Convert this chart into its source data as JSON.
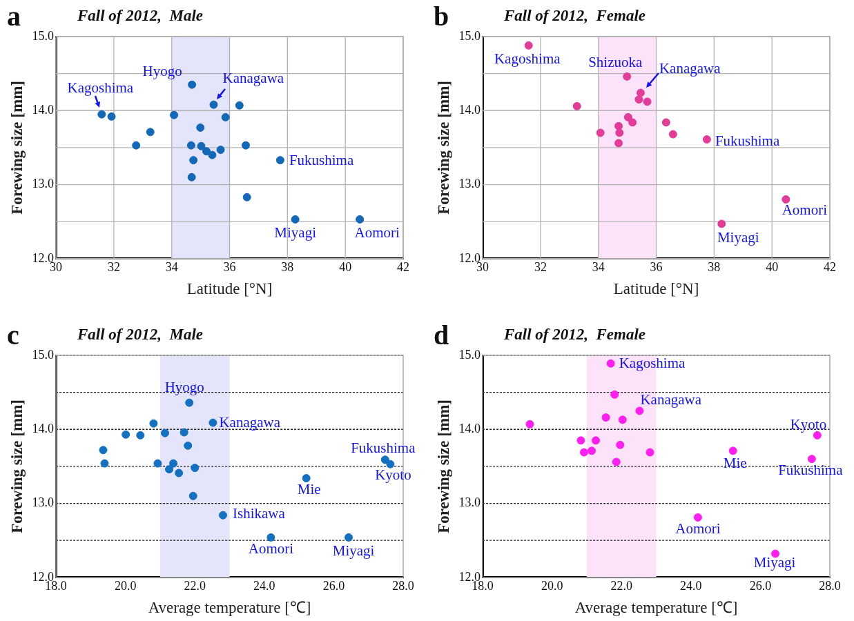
{
  "chart_data": [
    {
      "type": "scatter",
      "title": "Fall of 2012,  Male",
      "xlabel": "Latitude [°N]",
      "ylabel": "Forewing size [mm]",
      "xlim": [
        30,
        42
      ],
      "ylim": [
        12,
        15
      ],
      "xticks": [
        30,
        32,
        34,
        36,
        38,
        40,
        42
      ],
      "yticks": [
        {
          "value": 12,
          "label": "12.0"
        },
        {
          "value": 12.5,
          "label": null
        },
        {
          "value": 13,
          "label": "13.0"
        },
        {
          "value": 13.5,
          "label": null
        },
        {
          "value": 14,
          "label": "14.0"
        },
        {
          "value": 14.5,
          "label": null
        },
        {
          "value": 15,
          "label": "15.0"
        }
      ],
      "grid": true,
      "bands": [
        {
          "axis": "x",
          "from": 34,
          "to": 36,
          "color": "#e4e4fa"
        }
      ],
      "series": [
        {
          "color": "#1468b8",
          "x": [
            31.58,
            31.92,
            32.77,
            33.26,
            34.08,
            34.7,
            35.45,
            36.34,
            35.86,
            34.99,
            34.67,
            35.02,
            35.2,
            35.4,
            35.69,
            36.56,
            34.75,
            34.69,
            36.6,
            37.75,
            38.27,
            40.5
          ],
          "values": [
            13.95,
            13.92,
            13.53,
            13.71,
            13.94,
            14.35,
            14.08,
            14.07,
            13.91,
            13.77,
            13.53,
            13.52,
            13.45,
            13.4,
            13.47,
            13.53,
            13.33,
            13.1,
            12.83,
            13.33,
            12.53,
            12.53
          ]
        }
      ],
      "annotations": [
        "a",
        {
          "text": "Kagoshima",
          "x": 31.58,
          "y": 13.95
        },
        {
          "text": "Hyogo",
          "x": 34.7,
          "y": 14.35
        },
        {
          "text": "Kanagawa",
          "x": 35.45,
          "y": 14.08
        },
        {
          "text": "Fukushima",
          "x": 37.75,
          "y": 13.33
        },
        {
          "text": "Miyagi",
          "x": 38.27,
          "y": 12.53
        },
        {
          "text": "Aomori",
          "x": 40.5,
          "y": 12.53
        }
      ]
    },
    {
      "type": "scatter",
      "title": "Fall of 2012,  Female",
      "xlabel": "Latitude [°N]",
      "ylabel": "Forewing size [mm]",
      "xlim": [
        30,
        42
      ],
      "ylim": [
        12,
        15
      ],
      "xticks": [
        30,
        32,
        34,
        36,
        38,
        40,
        42
      ],
      "yticks": [
        {
          "value": 12,
          "label": "12.0"
        },
        {
          "value": 12.5,
          "label": null
        },
        {
          "value": 13,
          "label": "13.0"
        },
        {
          "value": 13.5,
          "label": null
        },
        {
          "value": 14,
          "label": "14.0"
        },
        {
          "value": 14.5,
          "label": null
        },
        {
          "value": 15,
          "label": "15.0"
        }
      ],
      "grid": true,
      "bands": [
        {
          "axis": "x",
          "from": 34,
          "to": 36,
          "color": "#fde3f9"
        }
      ],
      "series": [
        {
          "color": "#e23c98",
          "x": [
            31.59,
            33.26,
            34.07,
            34.7,
            34.73,
            34.7,
            34.99,
            35.03,
            35.18,
            35.4,
            35.46,
            35.69,
            36.34,
            36.58,
            37.75,
            38.26,
            40.48
          ],
          "values": [
            14.88,
            14.06,
            13.7,
            13.79,
            13.7,
            13.56,
            14.46,
            13.91,
            13.84,
            14.15,
            14.24,
            14.12,
            13.84,
            13.68,
            13.61,
            12.47,
            12.8
          ]
        }
      ],
      "annotations": [
        "b",
        {
          "text": "Kagoshima",
          "x": 31.59,
          "y": 14.88
        },
        {
          "text": "Shizuoka",
          "x": 34.99,
          "y": 14.46
        },
        {
          "text": "Kanagawa",
          "x": 35.46,
          "y": 14.24
        },
        {
          "text": "Fukushima",
          "x": 37.75,
          "y": 13.61
        },
        {
          "text": "Miyagi",
          "x": 38.26,
          "y": 12.47
        },
        {
          "text": "Aomori",
          "x": 40.48,
          "y": 12.8
        }
      ]
    },
    {
      "type": "scatter",
      "title": "Fall of 2012,  Male",
      "xlabel": "Average temperature [℃]",
      "ylabel": "Forewing size [mm]",
      "xlim": [
        18,
        28
      ],
      "ylim": [
        12,
        15
      ],
      "xticks": [
        {
          "value": 18,
          "label": "18.0"
        },
        {
          "value": 20,
          "label": "20.0"
        },
        {
          "value": 22,
          "label": "22.0"
        },
        {
          "value": 24,
          "label": "24.0"
        },
        {
          "value": 26,
          "label": "26.0"
        },
        {
          "value": 28,
          "label": "28.0"
        }
      ],
      "yticks": [
        {
          "value": 12,
          "label": "12.0"
        },
        {
          "value": 12.5,
          "label": null
        },
        {
          "value": 13,
          "label": "13.0"
        },
        {
          "value": 13.5,
          "label": null
        },
        {
          "value": 14,
          "label": "14.0"
        },
        {
          "value": 14.5,
          "label": null
        },
        {
          "value": 15,
          "label": "15.0"
        }
      ],
      "grid": "y",
      "bands": [
        {
          "axis": "x",
          "from": 21,
          "to": 23,
          "color": "#e4e4fa"
        }
      ],
      "series": [
        {
          "color": "#1470c0",
          "x": [
            19.36,
            19.4,
            20.01,
            20.43,
            20.81,
            20.93,
            21.14,
            21.26,
            21.38,
            21.54,
            21.69,
            21.8,
            21.84,
            22.0,
            21.95,
            22.52,
            22.81,
            24.19,
            25.21,
            26.43,
            27.48,
            27.63
          ],
          "values": [
            13.72,
            13.54,
            13.93,
            13.92,
            14.08,
            13.54,
            13.95,
            13.46,
            13.54,
            13.41,
            13.96,
            13.78,
            14.36,
            13.48,
            13.1,
            14.09,
            12.84,
            12.54,
            13.34,
            12.54,
            13.59,
            13.53
          ]
        }
      ],
      "annotations": [
        "c",
        {
          "text": "Hyogo",
          "x": 21.84,
          "y": 14.36
        },
        {
          "text": "Kanagawa",
          "x": 22.52,
          "y": 14.09
        },
        {
          "text": "Fukushima",
          "x": 27.48,
          "y": 13.59
        },
        {
          "text": "Kyoto",
          "x": 27.63,
          "y": 13.53
        },
        {
          "text": "Mie",
          "x": 25.21,
          "y": 13.34
        },
        {
          "text": "Ishikawa",
          "x": 22.81,
          "y": 12.84
        },
        {
          "text": "Aomori",
          "x": 24.19,
          "y": 12.54
        },
        {
          "text": "Miyagi",
          "x": 26.43,
          "y": 12.54
        }
      ]
    },
    {
      "type": "scatter",
      "title": "Fall of 2012,  Female",
      "xlabel": "Average temperature [℃]",
      "ylabel": "Forewing size [mm]",
      "xlim": [
        18,
        28
      ],
      "ylim": [
        12,
        15
      ],
      "xticks": [
        {
          "value": 18,
          "label": "18.0"
        },
        {
          "value": 20,
          "label": "20.0"
        },
        {
          "value": 22,
          "label": "22.0"
        },
        {
          "value": 24,
          "label": "24.0"
        },
        {
          "value": 26,
          "label": "26.0"
        },
        {
          "value": 28,
          "label": "28.0"
        }
      ],
      "yticks": [
        {
          "value": 12,
          "label": "12.0"
        },
        {
          "value": 12.5,
          "label": null
        },
        {
          "value": 13,
          "label": "13.0"
        },
        {
          "value": 13.5,
          "label": null
        },
        {
          "value": 14,
          "label": "14.0"
        },
        {
          "value": 14.5,
          "label": null
        },
        {
          "value": 15,
          "label": "15.0"
        }
      ],
      "grid": "y",
      "bands": [
        {
          "axis": "x",
          "from": 21,
          "to": 23,
          "color": "#fde3f9"
        }
      ],
      "series": [
        {
          "color": "#ff1ef0",
          "x": [
            19.36,
            20.83,
            20.92,
            21.14,
            21.26,
            21.55,
            21.69,
            21.8,
            21.85,
            21.96,
            22.03,
            22.52,
            22.82,
            24.2,
            25.21,
            26.43,
            27.48,
            27.64
          ],
          "values": [
            14.07,
            13.85,
            13.69,
            13.71,
            13.85,
            14.16,
            14.89,
            14.47,
            13.56,
            13.79,
            14.13,
            14.25,
            13.69,
            12.81,
            13.71,
            12.32,
            13.6,
            13.92
          ]
        }
      ],
      "annotations": [
        "d",
        {
          "text": "Kagoshima",
          "x": 21.69,
          "y": 14.89
        },
        {
          "text": "Kanagawa",
          "x": 22.52,
          "y": 14.25
        },
        {
          "text": "Kyoto",
          "x": 27.64,
          "y": 13.92
        },
        {
          "text": "Fukushima",
          "x": 27.48,
          "y": 13.6
        },
        {
          "text": "Mie",
          "x": 25.21,
          "y": 13.71
        },
        {
          "text": "Aomori",
          "x": 24.2,
          "y": 12.81
        },
        {
          "text": "Miyagi",
          "x": 26.43,
          "y": 12.32
        }
      ]
    }
  ]
}
